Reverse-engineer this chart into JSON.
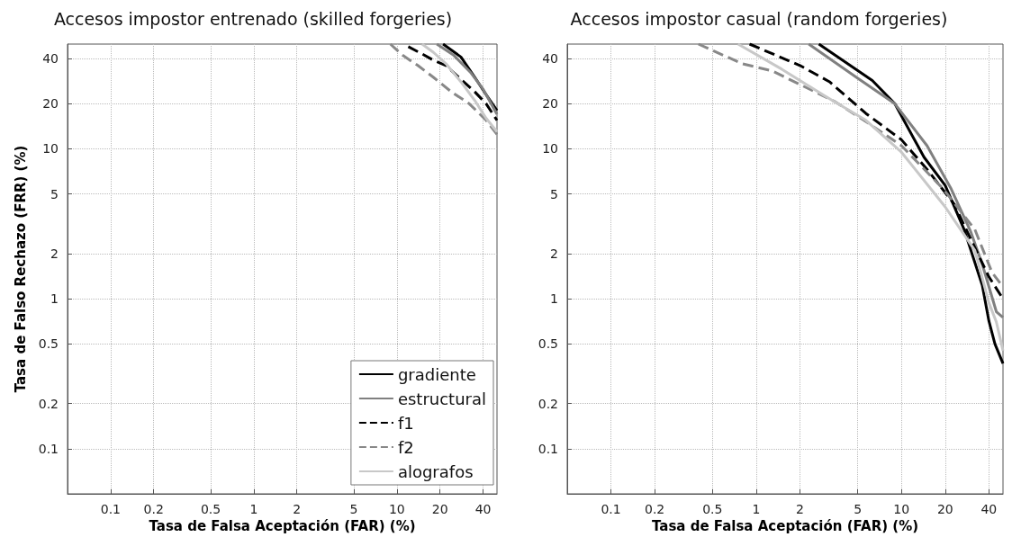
{
  "chart_data": [
    {
      "type": "line",
      "title": "Accesos impostor entrenado (skilled forgeries)",
      "xlabel": "Tasa de Falsa Aceptación (FAR) (%)",
      "ylabel": "Tasa de Falso Rechazo (FRR) (%)",
      "log": "xy",
      "xlim": [
        0.05,
        50
      ],
      "ylim": [
        0.05,
        50
      ],
      "xticks": [
        0.1,
        0.2,
        0.5,
        1,
        2,
        5,
        10,
        20,
        40
      ],
      "yticks": [
        0.1,
        0.2,
        0.5,
        1,
        2,
        5,
        10,
        20,
        40
      ],
      "grid": true,
      "legend": "bottom right",
      "series": [
        {
          "name": "gradiente",
          "color": "#000000",
          "line_style": "solid",
          "x": [
            21,
            28,
            35,
            42,
            50
          ],
          "values": [
            50,
            41,
            30,
            23,
            18
          ]
        },
        {
          "name": "estructural",
          "color": "#808080",
          "line_style": "solid",
          "x": [
            19,
            25,
            33,
            40,
            50
          ],
          "values": [
            50,
            42,
            32,
            25,
            17
          ]
        },
        {
          "name": "f1",
          "color": "#000000",
          "line_style": "dashed",
          "x": [
            12,
            15,
            18,
            22,
            27,
            35,
            42,
            50
          ],
          "values": [
            48,
            43,
            39,
            36,
            30,
            24,
            20,
            15.5
          ]
        },
        {
          "name": "f2",
          "color": "#888888",
          "line_style": "dashed",
          "x": [
            9,
            11,
            14,
            18,
            24,
            32,
            42,
            50
          ],
          "values": [
            50,
            42,
            36,
            30,
            24,
            20,
            15.5,
            12.5
          ]
        },
        {
          "name": "alografos",
          "color": "#c8c8c8",
          "line_style": "solid",
          "x": [
            15,
            18,
            22,
            28,
            35,
            42,
            50
          ],
          "values": [
            50,
            44,
            37,
            28,
            21,
            16,
            13
          ]
        }
      ]
    },
    {
      "type": "line",
      "title": "Accesos impostor casual (random forgeries)",
      "xlabel": "Tasa de Falsa Aceptación (FAR) (%)",
      "log": "xy",
      "xlim": [
        0.05,
        50
      ],
      "ylim": [
        0.05,
        50
      ],
      "xticks": [
        0.1,
        0.2,
        0.5,
        1,
        2,
        5,
        10,
        20,
        40
      ],
      "yticks": [
        0.1,
        0.2,
        0.5,
        1,
        2,
        5,
        10,
        20,
        40
      ],
      "grid": true,
      "series": [
        {
          "color": "#000000",
          "line_style": "solid",
          "x": [
            2.7,
            6.3,
            9,
            14.3,
            20,
            27,
            36,
            40,
            44,
            50
          ],
          "values": [
            50,
            28.6,
            20,
            8.8,
            5.7,
            2.9,
            1.23,
            0.71,
            0.5,
            0.37
          ]
        },
        {
          "color": "#808080",
          "line_style": "solid",
          "x": [
            2.3,
            4.9,
            9,
            15,
            22,
            30,
            36,
            45,
            50
          ],
          "values": [
            50,
            30,
            20,
            10.5,
            5.4,
            2.8,
            1.7,
            0.82,
            0.75
          ]
        },
        {
          "color": "#000000",
          "line_style": "dashed",
          "x": [
            0.9,
            2,
            3.2,
            5.7,
            10,
            15,
            23,
            30,
            40,
            50
          ],
          "values": [
            50,
            36,
            28,
            17.2,
            11.5,
            7.3,
            4.3,
            2.5,
            1.4,
            1
          ]
        },
        {
          "color": "#888888",
          "line_style": "dashed",
          "x": [
            0.4,
            0.8,
            1.3,
            3.5,
            6,
            10,
            19.4,
            32,
            42,
            50
          ],
          "values": [
            50,
            37,
            33,
            20.6,
            14.7,
            10.5,
            5.4,
            2.9,
            1.5,
            1.2
          ]
        },
        {
          "color": "#c8c8c8",
          "line_style": "solid",
          "x": [
            0.75,
            1.5,
            3.1,
            5.7,
            10,
            20,
            32,
            40,
            45,
            50
          ],
          "values": [
            50,
            34,
            22,
            15.5,
            9.5,
            4.1,
            2.1,
            0.94,
            0.7,
            0.45
          ]
        }
      ]
    }
  ]
}
